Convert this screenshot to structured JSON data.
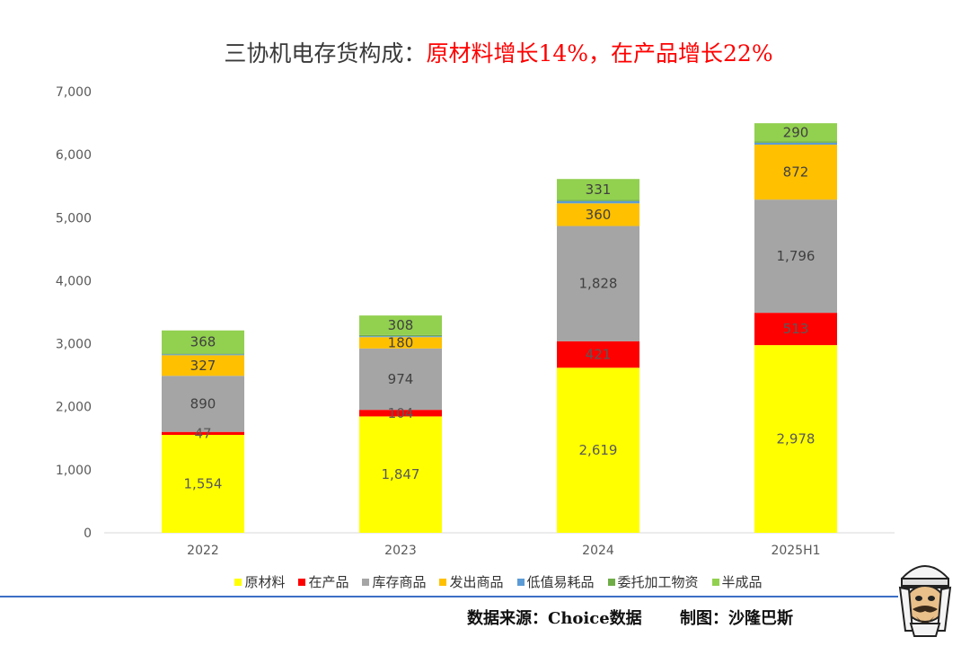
{
  "title": {
    "lead": "三协机电存货构成：",
    "highlight": "原材料增长14%，在产品增长22%"
  },
  "chart_data": {
    "type": "bar",
    "stacked": true,
    "categories": [
      "2022",
      "2023",
      "2024",
      "2025H1"
    ],
    "ylim": [
      0,
      7000
    ],
    "yticks": [
      "0",
      "1,000",
      "2,000",
      "3,000",
      "4,000",
      "5,000",
      "6,000",
      "7,000"
    ],
    "grid": false,
    "legend_position": "bottom",
    "series": [
      {
        "name": "原材料",
        "color": "#ffff00",
        "label_color": "#595959",
        "values": [
          1554,
          1847,
          2619,
          2978
        ],
        "labels": [
          "1,554",
          "1,847",
          "2,619",
          "2,978"
        ]
      },
      {
        "name": "在产品",
        "color": "#ff0000",
        "label_color": "#595959",
        "values": [
          47,
          104,
          421,
          513
        ],
        "labels": [
          "47",
          "104",
          "421",
          "513"
        ]
      },
      {
        "name": "库存商品",
        "color": "#a5a5a5",
        "label_color": "#404040",
        "values": [
          890,
          974,
          1828,
          1796
        ],
        "labels": [
          "890",
          "974",
          "1,828",
          "1,796"
        ]
      },
      {
        "name": "发出商品",
        "color": "#ffc000",
        "label_color": "#404040",
        "values": [
          327,
          180,
          360,
          872
        ],
        "labels": [
          "327",
          "180",
          "360",
          "872"
        ]
      },
      {
        "name": "低值易耗品",
        "color": "#5b9bd5",
        "label_color": "#404040",
        "values": [
          15,
          15,
          35,
          30
        ],
        "labels": [
          "",
          "",
          "",
          ""
        ]
      },
      {
        "name": "委托加工物资",
        "color": "#70ad47",
        "label_color": "#404040",
        "values": [
          10,
          20,
          20,
          20
        ],
        "labels": [
          "",
          "",
          "",
          ""
        ]
      },
      {
        "name": "半成品",
        "color": "#92d050",
        "label_color": "#404040",
        "values": [
          368,
          308,
          331,
          290
        ],
        "labels": [
          "368",
          "308",
          "331",
          "290"
        ]
      }
    ]
  },
  "footer": {
    "source": "数据来源：Choice数据",
    "credit": "制图：沙隆巴斯"
  },
  "colors": {
    "footer_rule": "#3c6fc4",
    "title_highlight": "#ff0000"
  },
  "mascot_icon": "cartoon-mascot-icon"
}
